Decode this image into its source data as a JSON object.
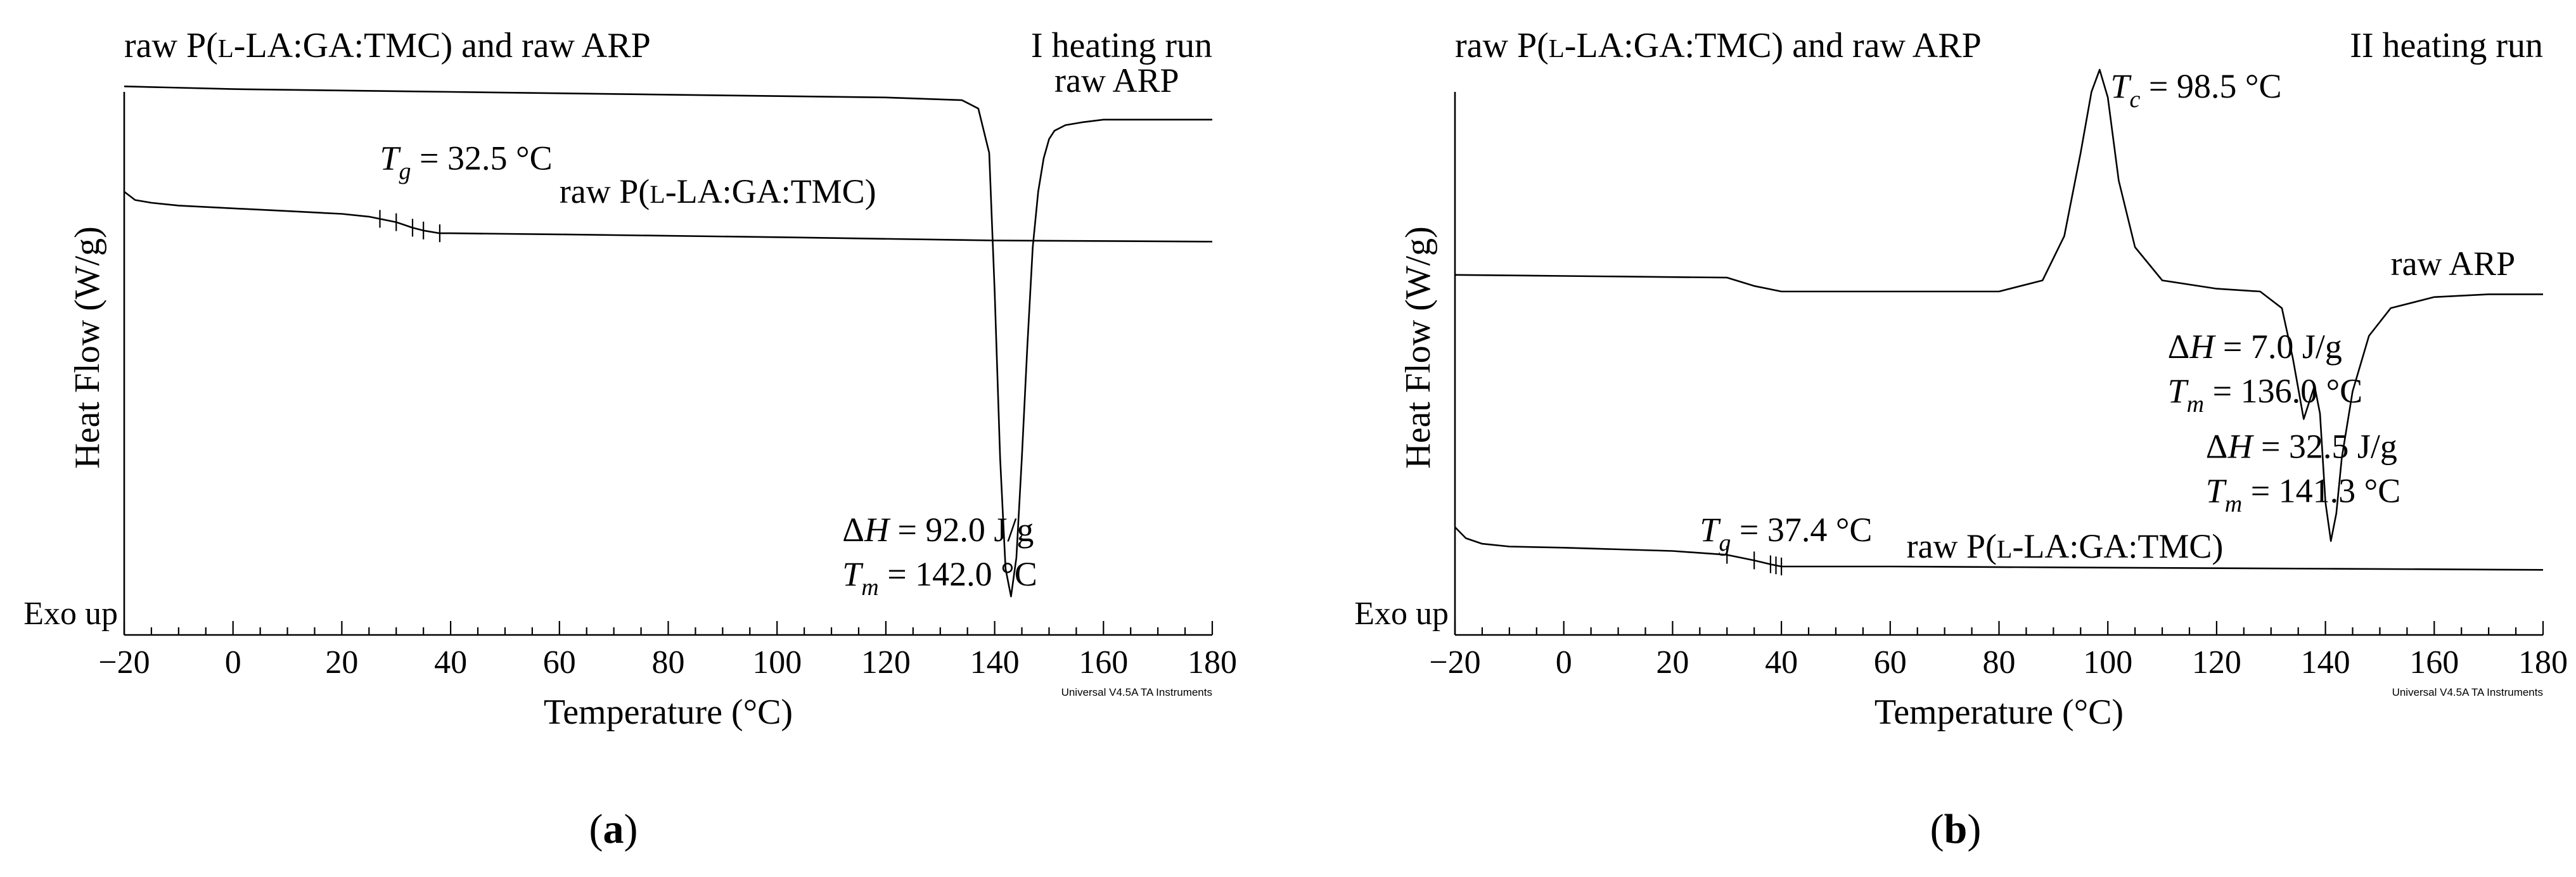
{
  "chart_data": [
    {
      "type": "line",
      "panel_label": "a",
      "title_left": "raw P(L-LA:GA:TMC) and raw ARP",
      "title_right": "I heating run",
      "xlabel": "Temperature (°C)",
      "ylabel": "Heat Flow (W/g)",
      "exo_label": "Exo up",
      "watermark": "Universal V4.5A TA Instruments",
      "xlim": [
        -20,
        180
      ],
      "xticks": [
        -20,
        0,
        20,
        40,
        60,
        80,
        100,
        120,
        140,
        160,
        180
      ],
      "yrange_relative": [
        0,
        1
      ],
      "series": [
        {
          "name": "raw ARP",
          "x": [
            -20,
            0,
            40,
            80,
            120,
            134,
            137,
            139,
            140,
            141,
            142,
            143,
            144,
            145,
            146,
            147,
            148,
            149,
            150,
            151,
            153,
            156,
            160,
            170,
            180
          ],
          "y": [
            0.97,
            0.965,
            0.96,
            0.955,
            0.95,
            0.945,
            0.93,
            0.85,
            0.6,
            0.3,
            0.1,
            0.05,
            0.12,
            0.3,
            0.5,
            0.68,
            0.78,
            0.84,
            0.875,
            0.89,
            0.9,
            0.905,
            0.91,
            0.91,
            0.91
          ]
        },
        {
          "name": "raw P(L-LA:GA:TMC)",
          "x": [
            -20,
            -18,
            -15,
            -10,
            0,
            10,
            20,
            25,
            30,
            33,
            35,
            38,
            40,
            60,
            100,
            140,
            180
          ],
          "y": [
            0.78,
            0.765,
            0.76,
            0.755,
            0.75,
            0.745,
            0.74,
            0.735,
            0.725,
            0.715,
            0.71,
            0.705,
            0.705,
            0.703,
            0.698,
            0.692,
            0.69
          ]
        }
      ],
      "annotations": [
        {
          "symbol": "T",
          "sub": "g",
          "text": " = 32.5 °C",
          "x": 27,
          "y": 0.82
        },
        {
          "label": "raw P(L-LA:GA:TMC)",
          "x": 60,
          "y": 0.76
        },
        {
          "label": "raw ARP",
          "x": 151,
          "y": 0.96
        },
        {
          "symbol": "ΔH",
          "text": " = 92.0 J/g",
          "x": 112,
          "y": 0.15
        },
        {
          "symbol": "T",
          "sub": "m",
          "text": " = 142.0 °C",
          "x": 112,
          "y": 0.07
        }
      ],
      "markers": [
        27,
        30,
        33,
        35,
        38
      ]
    },
    {
      "type": "line",
      "panel_label": "b",
      "title_left": "raw P(L-LA:GA:TMC) and raw ARP",
      "title_right": "II heating run",
      "xlabel": "Temperature (°C)",
      "ylabel": "Heat Flow (W/g)",
      "exo_label": "Exo up",
      "watermark": "Universal V4.5A TA Instruments",
      "xlim": [
        -20,
        180
      ],
      "xticks": [
        -20,
        0,
        20,
        40,
        60,
        80,
        100,
        120,
        140,
        160,
        180
      ],
      "yrange_relative": [
        0,
        1
      ],
      "series": [
        {
          "name": "raw ARP",
          "x": [
            -20,
            0,
            30,
            35,
            40,
            60,
            80,
            88,
            92,
            95,
            97,
            98.5,
            100,
            102,
            105,
            110,
            120,
            128,
            132,
            134,
            136,
            137,
            138,
            139,
            140,
            141,
            142,
            143,
            145,
            148,
            152,
            160,
            170,
            180
          ],
          "y": [
            0.63,
            0.628,
            0.625,
            0.61,
            0.6,
            0.6,
            0.6,
            0.62,
            0.7,
            0.85,
            0.96,
            1.0,
            0.95,
            0.8,
            0.68,
            0.62,
            0.605,
            0.6,
            0.57,
            0.48,
            0.37,
            0.4,
            0.43,
            0.38,
            0.22,
            0.15,
            0.2,
            0.3,
            0.42,
            0.52,
            0.57,
            0.59,
            0.595,
            0.595
          ]
        },
        {
          "name": "raw P(L-LA:GA:TMC)",
          "x": [
            -20,
            -18,
            -15,
            -10,
            0,
            20,
            30,
            35,
            38,
            40,
            60,
            100,
            140,
            180
          ],
          "y": [
            0.175,
            0.155,
            0.145,
            0.14,
            0.138,
            0.132,
            0.125,
            0.115,
            0.108,
            0.104,
            0.104,
            0.102,
            0.1,
            0.098
          ]
        }
      ],
      "annotations": [
        {
          "symbol": "T",
          "sub": "c",
          "text": " = 98.5 °C",
          "x": 100.5,
          "y": 0.95
        },
        {
          "label": "raw ARP",
          "x": 152,
          "y": 0.63
        },
        {
          "symbol": "ΔH",
          "text": " = 7.0 J/g",
          "x": 111,
          "y": 0.48
        },
        {
          "symbol": "T",
          "sub": "m",
          "text": " = 136.0 °C",
          "x": 111,
          "y": 0.4
        },
        {
          "symbol": "ΔH",
          "text": " = 32.5 J/g",
          "x": 118,
          "y": 0.3
        },
        {
          "symbol": "T",
          "sub": "m",
          "text": " = 141.3 °C",
          "x": 118,
          "y": 0.22
        },
        {
          "symbol": "T",
          "sub": "g",
          "text": " = 37.4 °C",
          "x": 25,
          "y": 0.15
        },
        {
          "label": "raw P(L-LA:GA:TMC)",
          "x": 63,
          "y": 0.12
        }
      ],
      "markers": [
        30,
        35,
        38,
        39,
        40
      ]
    }
  ]
}
